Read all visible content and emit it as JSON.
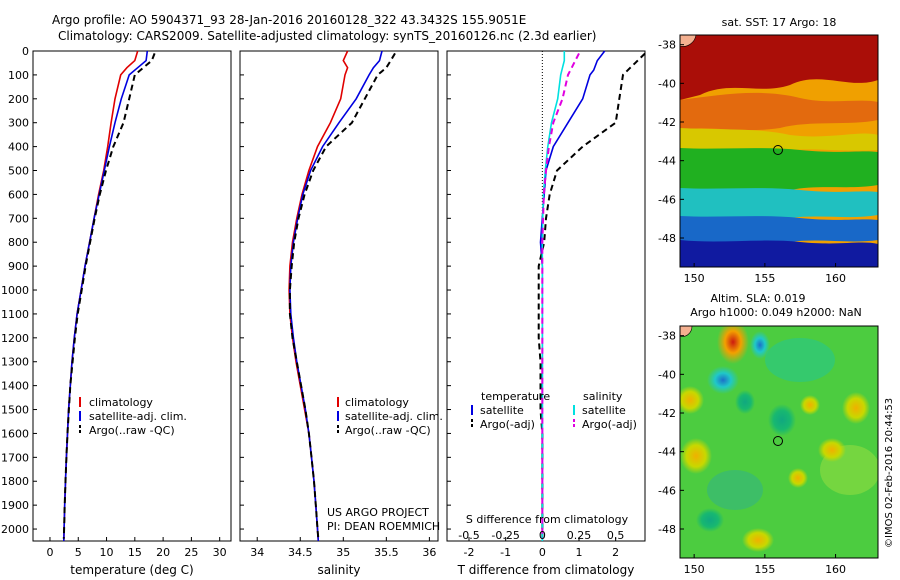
{
  "header": {
    "line1": "Argo profile: AO 5904371_93 28-Jan-2016 20160128_322 43.3432S 155.9051E",
    "line2": "Climatology: CARS2009. Satellite-adjusted climatology: synTS_20160126.nc (2.3d earlier)"
  },
  "project": {
    "line1": "US ARGO PROJECT",
    "line2": "PI: DEAN ROEMMICH"
  },
  "imos_stamp": "©IMOS 02-Feb-2016 20:44:53",
  "colors": {
    "climatology": "#e00000",
    "satellite": "#0000e0",
    "argo": "#000000",
    "sal_satellite": "#00e0e0",
    "sal_argo": "#e000e0"
  },
  "chart_data": [
    {
      "type": "line",
      "xlabel": "temperature (deg C)",
      "ylabel": "",
      "xlim": [
        -3,
        32
      ],
      "ylim": [
        2050,
        0
      ],
      "xticks": [
        0,
        5,
        10,
        15,
        20,
        25,
        30
      ],
      "yticks": [
        0,
        100,
        200,
        300,
        400,
        500,
        600,
        700,
        800,
        900,
        1000,
        1100,
        1200,
        1300,
        1400,
        1500,
        1600,
        1700,
        1800,
        1900,
        2000
      ],
      "legend_placement": "lower-left",
      "legend": [
        "climatology",
        "satellite-adj. clim.",
        "Argo(..raw -QC)"
      ],
      "series": [
        {
          "name": "climatology",
          "color": "#e00000",
          "dash": "",
          "points": [
            [
              15.5,
              0
            ],
            [
              15,
              40
            ],
            [
              13.6,
              70
            ],
            [
              12.5,
              100
            ],
            [
              11.5,
              200
            ],
            [
              10.8,
              300
            ],
            [
              10.2,
              400
            ],
            [
              9.5,
              500
            ],
            [
              8.6,
              600
            ],
            [
              7.8,
              700
            ],
            [
              7,
              800
            ],
            [
              6.2,
              900
            ],
            [
              5.5,
              1000
            ],
            [
              4.8,
              1100
            ],
            [
              4.3,
              1200
            ],
            [
              3.9,
              1300
            ],
            [
              3.6,
              1400
            ],
            [
              3.3,
              1500
            ],
            [
              3.1,
              1600
            ],
            [
              2.9,
              1700
            ],
            [
              2.75,
              1800
            ],
            [
              2.6,
              1900
            ],
            [
              2.5,
              2000
            ],
            [
              2.45,
              2050
            ]
          ]
        },
        {
          "name": "satellite-adj. clim.",
          "color": "#0000e0",
          "dash": "",
          "points": [
            [
              17.2,
              0
            ],
            [
              17,
              40
            ],
            [
              15.5,
              70
            ],
            [
              14,
              100
            ],
            [
              12.6,
              200
            ],
            [
              11.5,
              300
            ],
            [
              10.5,
              400
            ],
            [
              9.6,
              500
            ],
            [
              8.7,
              600
            ],
            [
              7.8,
              700
            ],
            [
              7,
              800
            ],
            [
              6.2,
              900
            ],
            [
              5.5,
              1000
            ],
            [
              4.8,
              1100
            ],
            [
              4.3,
              1200
            ],
            [
              3.9,
              1300
            ],
            [
              3.6,
              1400
            ],
            [
              3.3,
              1500
            ],
            [
              3.1,
              1600
            ],
            [
              2.9,
              1700
            ],
            [
              2.75,
              1800
            ],
            [
              2.6,
              1900
            ],
            [
              2.5,
              2000
            ],
            [
              2.45,
              2050
            ]
          ]
        },
        {
          "name": "Argo(..raw -QC)",
          "color": "#000000",
          "dash": "6,4",
          "points": [
            [
              18.5,
              10
            ],
            [
              18,
              40
            ],
            [
              16.5,
              70
            ],
            [
              15,
              100
            ],
            [
              14,
              200
            ],
            [
              13,
              300
            ],
            [
              11.2,
              400
            ],
            [
              9.9,
              500
            ],
            [
              8.8,
              600
            ],
            [
              7.9,
              700
            ],
            [
              7.1,
              800
            ],
            [
              6.3,
              900
            ],
            [
              5.6,
              1000
            ],
            [
              4.9,
              1100
            ],
            [
              4.4,
              1200
            ],
            [
              4,
              1300
            ],
            [
              3.6,
              1400
            ],
            [
              3.35,
              1500
            ],
            [
              3.1,
              1600
            ],
            [
              2.9,
              1700
            ],
            [
              2.75,
              1800
            ],
            [
              2.6,
              1900
            ],
            [
              2.5,
              2000
            ],
            [
              2.45,
              2040
            ]
          ]
        }
      ]
    },
    {
      "type": "line",
      "xlabel": "salinity",
      "ylabel": "",
      "xlim": [
        33.8,
        36.1
      ],
      "ylim": [
        2050,
        0
      ],
      "xticks": [
        34,
        34.5,
        35,
        35.5,
        36
      ],
      "legend_placement": "lower-right",
      "legend": [
        "climatology",
        "satellite-adj. clim.",
        "Argo(..raw -QC)"
      ],
      "series": [
        {
          "name": "climatology",
          "color": "#e00000",
          "dash": "",
          "points": [
            [
              35.05,
              0
            ],
            [
              35,
              40
            ],
            [
              35.05,
              70
            ],
            [
              35.02,
              100
            ],
            [
              34.97,
              200
            ],
            [
              34.85,
              300
            ],
            [
              34.7,
              400
            ],
            [
              34.6,
              500
            ],
            [
              34.52,
              600
            ],
            [
              34.46,
              700
            ],
            [
              34.41,
              800
            ],
            [
              34.38,
              900
            ],
            [
              34.37,
              1000
            ],
            [
              34.38,
              1100
            ],
            [
              34.41,
              1200
            ],
            [
              34.45,
              1300
            ],
            [
              34.5,
              1400
            ],
            [
              34.55,
              1500
            ],
            [
              34.6,
              1600
            ],
            [
              34.63,
              1700
            ],
            [
              34.66,
              1800
            ],
            [
              34.68,
              1900
            ],
            [
              34.7,
              2000
            ],
            [
              34.71,
              2050
            ]
          ]
        },
        {
          "name": "satellite-adj. clim.",
          "color": "#0000e0",
          "dash": "",
          "points": [
            [
              35.45,
              0
            ],
            [
              35.42,
              40
            ],
            [
              35.35,
              70
            ],
            [
              35.3,
              100
            ],
            [
              35.15,
              200
            ],
            [
              34.95,
              300
            ],
            [
              34.76,
              400
            ],
            [
              34.62,
              500
            ],
            [
              34.53,
              600
            ],
            [
              34.47,
              700
            ],
            [
              34.42,
              800
            ],
            [
              34.39,
              900
            ],
            [
              34.38,
              1000
            ],
            [
              34.39,
              1100
            ],
            [
              34.42,
              1200
            ],
            [
              34.46,
              1300
            ],
            [
              34.51,
              1400
            ],
            [
              34.56,
              1500
            ],
            [
              34.6,
              1600
            ],
            [
              34.63,
              1700
            ],
            [
              34.66,
              1800
            ],
            [
              34.68,
              1900
            ],
            [
              34.7,
              2000
            ],
            [
              34.71,
              2050
            ]
          ]
        },
        {
          "name": "Argo(..raw -QC)",
          "color": "#000000",
          "dash": "6,4",
          "points": [
            [
              35.6,
              10
            ],
            [
              35.55,
              40
            ],
            [
              35.5,
              70
            ],
            [
              35.4,
              100
            ],
            [
              35.25,
              200
            ],
            [
              35.1,
              300
            ],
            [
              34.8,
              400
            ],
            [
              34.65,
              500
            ],
            [
              34.55,
              600
            ],
            [
              34.48,
              700
            ],
            [
              34.43,
              800
            ],
            [
              34.4,
              900
            ],
            [
              34.38,
              1000
            ],
            [
              34.38,
              1100
            ],
            [
              34.41,
              1200
            ],
            [
              34.46,
              1300
            ],
            [
              34.51,
              1400
            ],
            [
              34.56,
              1500
            ],
            [
              34.6,
              1600
            ],
            [
              34.63,
              1700
            ],
            [
              34.66,
              1800
            ],
            [
              34.68,
              1900
            ],
            [
              34.7,
              2000
            ],
            [
              34.71,
              2040
            ]
          ]
        }
      ]
    },
    {
      "type": "line",
      "xlabel": "T difference from climatology",
      "xlabel_top": "S difference from climatology",
      "xlim": [
        -2.6,
        2.8
      ],
      "ylim": [
        2050,
        0
      ],
      "xticks": [
        -2,
        -1,
        0,
        1,
        2
      ],
      "xticks_S": [
        -0.5,
        -0.25,
        0,
        0.25,
        0.5
      ],
      "legend_placement": "lower-center",
      "legend_titles": [
        "temperature",
        "salinity"
      ],
      "legend": [
        "satellite",
        "Argo(-adj)",
        "satellite",
        "Argo(-adj)"
      ],
      "series": [
        {
          "name": "satellite",
          "color": "#0000e0",
          "dash": "",
          "points": [
            [
              1.7,
              0
            ],
            [
              1.5,
              40
            ],
            [
              1.4,
              80
            ],
            [
              1.3,
              100
            ],
            [
              1.1,
              200
            ],
            [
              0.7,
              300
            ],
            [
              0.3,
              400
            ],
            [
              0.1,
              500
            ],
            [
              0.05,
              600
            ],
            [
              0,
              700
            ],
            [
              -0.05,
              800
            ],
            [
              0,
              900
            ],
            [
              0,
              1000
            ],
            [
              0,
              1100
            ],
            [
              0,
              1200
            ],
            [
              0,
              1400
            ],
            [
              0,
              1600
            ],
            [
              0,
              1800
            ],
            [
              0,
              2000
            ],
            [
              0,
              2050
            ]
          ]
        },
        {
          "name": "Argo(-adj)",
          "color": "#000000",
          "dash": "6,4",
          "points": [
            [
              2.8,
              10
            ],
            [
              2.6,
              40
            ],
            [
              2.4,
              70
            ],
            [
              2.2,
              100
            ],
            [
              2.1,
              200
            ],
            [
              2,
              300
            ],
            [
              1.1,
              400
            ],
            [
              0.4,
              500
            ],
            [
              0.2,
              600
            ],
            [
              0.1,
              700
            ],
            [
              0.05,
              800
            ],
            [
              -0.1,
              900
            ],
            [
              -0.1,
              1000
            ],
            [
              -0.1,
              1100
            ],
            [
              -0.1,
              1200
            ],
            [
              -0.05,
              1300
            ],
            [
              -0.05,
              1400
            ],
            [
              -0.05,
              1500
            ],
            [
              0,
              1600
            ],
            [
              0,
              1800
            ],
            [
              0,
              2000
            ],
            [
              0,
              2040
            ]
          ]
        },
        {
          "name": "satellite",
          "color": "#00e0e0",
          "dash": "",
          "points": [
            [
              0.6,
              0
            ],
            [
              0.6,
              40
            ],
            [
              0.55,
              70
            ],
            [
              0.5,
              100
            ],
            [
              0.42,
              200
            ],
            [
              0.25,
              300
            ],
            [
              0.15,
              400
            ],
            [
              0.08,
              500
            ],
            [
              0.03,
              600
            ],
            [
              0.01,
              700
            ],
            [
              0,
              800
            ],
            [
              0,
              1000
            ],
            [
              0,
              1200
            ],
            [
              0,
              1400
            ],
            [
              0,
              1600
            ],
            [
              0,
              1800
            ],
            [
              0,
              2000
            ],
            [
              0,
              2050
            ]
          ]
        },
        {
          "name": "Argo(-adj)",
          "color": "#e000e0",
          "dash": "6,4",
          "points": [
            [
              1,
              10
            ],
            [
              0.9,
              40
            ],
            [
              0.8,
              70
            ],
            [
              0.7,
              100
            ],
            [
              0.55,
              200
            ],
            [
              0.3,
              300
            ],
            [
              0.18,
              400
            ],
            [
              0.1,
              500
            ],
            [
              0.04,
              600
            ],
            [
              0.02,
              700
            ],
            [
              0,
              800
            ],
            [
              0,
              1000
            ],
            [
              0,
              1200
            ],
            [
              0,
              1400
            ],
            [
              0,
              1600
            ],
            [
              0,
              1800
            ],
            [
              0,
              2000
            ],
            [
              0,
              2040
            ]
          ]
        }
      ]
    },
    {
      "type": "heatmap",
      "title": "sat. SST: 17 Argo: 18",
      "xlim": [
        149,
        163
      ],
      "ylim": [
        -49.5,
        -37.5
      ],
      "xticks": [
        150,
        155,
        160
      ],
      "yticks": [
        -38,
        -40,
        -42,
        -44,
        -46,
        -48
      ],
      "marker": {
        "lon": 155.9,
        "lat": -43.34
      }
    },
    {
      "type": "heatmap",
      "title": "Altim. SLA: 0.019",
      "subtitle": "Argo h1000: 0.049 h2000: NaN",
      "xlim": [
        149,
        163
      ],
      "ylim": [
        -49.5,
        -37.5
      ],
      "xticks": [
        150,
        155,
        160
      ],
      "yticks": [
        -38,
        -40,
        -42,
        -44,
        -46,
        -48
      ],
      "marker": {
        "lon": 155.9,
        "lat": -43.34
      }
    }
  ]
}
